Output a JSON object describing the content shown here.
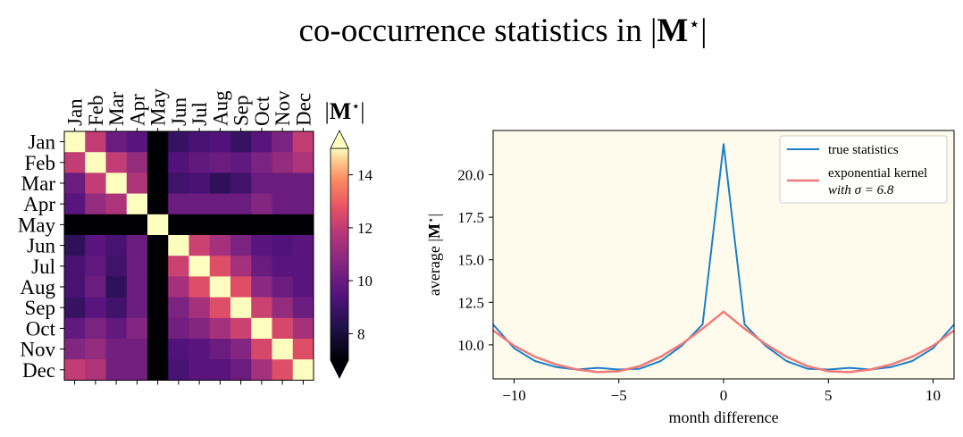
{
  "figure": {
    "title": "co-occurrence statistics in |M★|",
    "title_parts": [
      "co-occurrence statistics in |",
      "M",
      "⋆",
      "|"
    ]
  },
  "chart_data": [
    {
      "type": "heatmap",
      "rows": [
        "Jan",
        "Feb",
        "Mar",
        "Apr",
        "May",
        "Jun",
        "Jul",
        "Aug",
        "Sep",
        "Oct",
        "Nov",
        "Dec"
      ],
      "columns": [
        "Jan",
        "Feb",
        "Mar",
        "Apr",
        "May",
        "Jun",
        "Jul",
        "Aug",
        "Sep",
        "Oct",
        "Nov",
        "Dec"
      ],
      "values": [
        [
          15,
          12,
          10,
          9.6,
          7,
          8.8,
          9.2,
          9.4,
          8.8,
          9.6,
          10.4,
          12
        ],
        [
          12,
          15,
          12,
          11,
          7,
          9.4,
          9.8,
          10,
          9.8,
          10.4,
          11,
          11.6
        ],
        [
          10,
          12,
          15,
          11.6,
          7,
          9,
          9.2,
          8.6,
          9,
          10,
          10,
          10
        ],
        [
          9.6,
          11,
          11.6,
          15,
          7,
          10,
          10,
          10,
          10,
          10.6,
          10,
          10
        ],
        [
          7,
          7,
          7,
          7,
          15,
          7,
          7,
          7,
          7,
          7,
          7,
          7
        ],
        [
          8.6,
          9.6,
          9.2,
          10,
          7,
          15,
          12.2,
          11.4,
          10.4,
          9.6,
          9.4,
          9.6
        ],
        [
          9.2,
          9.8,
          9,
          10,
          7,
          12.2,
          15,
          12.6,
          11.4,
          10,
          9.6,
          9.6
        ],
        [
          9.2,
          10,
          8.6,
          10,
          7,
          11.4,
          12.6,
          15,
          12.6,
          10.8,
          10,
          9.6
        ],
        [
          8.8,
          9.6,
          9,
          10,
          7,
          10.4,
          11.4,
          12.6,
          15,
          12.2,
          11,
          10
        ],
        [
          9.8,
          10.4,
          9.8,
          10.6,
          7,
          10.2,
          10.6,
          11.4,
          12.2,
          15,
          12.4,
          11.4
        ],
        [
          10.6,
          11,
          10.2,
          10.2,
          7,
          9.4,
          9.6,
          10,
          10.6,
          12.4,
          15,
          12.6
        ],
        [
          12,
          11.6,
          10.2,
          10.2,
          7,
          9.2,
          9.6,
          9.6,
          10,
          11.4,
          12.6,
          15
        ]
      ],
      "colormap": "magma",
      "colorbar": {
        "label_parts": [
          "|",
          "M",
          "⋆",
          "|"
        ],
        "range": [
          7,
          15
        ],
        "ticks": [
          8,
          10,
          12,
          14
        ],
        "extend": "both"
      }
    },
    {
      "type": "line",
      "xlabel": "month difference",
      "ylabel_parts": [
        "average |",
        "M",
        "⋆",
        "|"
      ],
      "xlim": [
        -11,
        11
      ],
      "ylim": [
        8,
        22.6
      ],
      "xticks": [
        -10,
        -5,
        0,
        5,
        10
      ],
      "yticks": [
        10.0,
        12.5,
        15.0,
        17.5,
        20.0
      ],
      "background": "#fefbed",
      "legend_position": "upper right",
      "series": [
        {
          "name": "true statistics",
          "color": "#1a7fc9",
          "x": [
            -11,
            -10,
            -9,
            -8,
            -7,
            -6,
            -5,
            -4,
            -3,
            -2,
            -1,
            0,
            1,
            2,
            3,
            4,
            5,
            6,
            7,
            8,
            9,
            10,
            11
          ],
          "y": [
            11.2,
            9.8,
            9.05,
            8.7,
            8.55,
            8.65,
            8.55,
            8.6,
            9.05,
            9.95,
            11.2,
            21.8,
            11.2,
            9.95,
            9.05,
            8.6,
            8.55,
            8.65,
            8.55,
            8.7,
            9.05,
            9.8,
            11.2
          ]
        },
        {
          "name": "exponential kernel",
          "name_line2": "with σ = 6.8",
          "color": "#f07a78",
          "x": [
            -11,
            -10,
            -9,
            -8,
            -7,
            -6,
            -5,
            -4,
            -3,
            -2,
            -1,
            0,
            1,
            2,
            3,
            4,
            5,
            6,
            7,
            8,
            9,
            10,
            11
          ],
          "y": [
            10.85,
            9.95,
            9.3,
            8.85,
            8.55,
            8.4,
            8.45,
            8.75,
            9.3,
            10.05,
            10.95,
            11.95,
            10.95,
            10.05,
            9.3,
            8.75,
            8.45,
            8.4,
            8.55,
            8.85,
            9.3,
            9.95,
            10.85
          ]
        }
      ]
    }
  ]
}
